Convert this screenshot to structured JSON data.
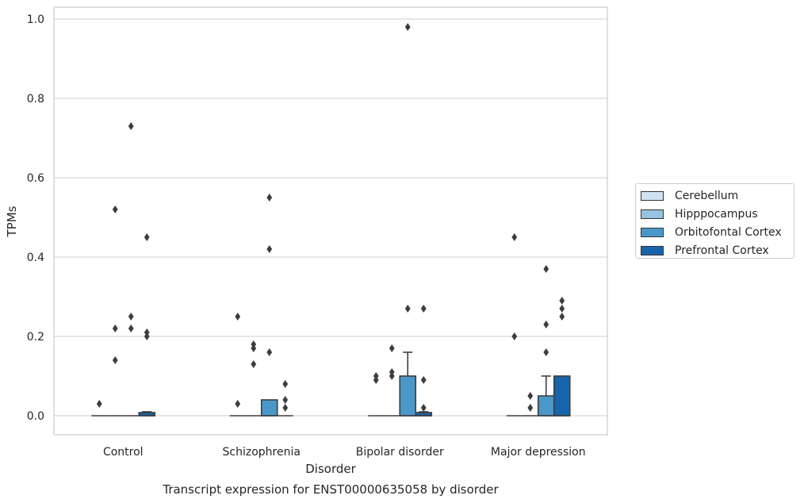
{
  "chart_data": {
    "type": "box",
    "title": "Transcript expression for ENST00000635058 by disorder",
    "xlabel": "Disorder",
    "ylabel": "TPMs",
    "ylim": [
      -0.045,
      1.03
    ],
    "yticks": [
      "0.0",
      "0.2",
      "0.4",
      "0.6",
      "0.8",
      "1.0"
    ],
    "grid": true,
    "legend_position": "right",
    "categories": [
      "Control",
      "Schizophrenia",
      "Bipolar disorder",
      "Major depression"
    ],
    "series": [
      {
        "name": "Cerebellum",
        "color": "#d0e1f2",
        "boxes": [
          {
            "q1": 0,
            "median": 0,
            "q3": 0,
            "whisker_low": 0,
            "whisker_high": 0,
            "outliers": [
              0.03
            ]
          },
          {
            "q1": 0,
            "median": 0,
            "q3": 0,
            "whisker_low": 0,
            "whisker_high": 0,
            "outliers": [
              0.03,
              0.25
            ]
          },
          {
            "q1": 0,
            "median": 0,
            "q3": 0,
            "whisker_low": 0,
            "whisker_high": 0,
            "outliers": [
              0.09,
              0.1
            ]
          },
          {
            "q1": 0,
            "median": 0,
            "q3": 0,
            "whisker_low": 0,
            "whisker_high": 0,
            "outliers": [
              0.2,
              0.45
            ]
          }
        ]
      },
      {
        "name": "Hipppocampus",
        "color": "#94c4df",
        "boxes": [
          {
            "q1": 0,
            "median": 0,
            "q3": 0,
            "whisker_low": 0,
            "whisker_high": 0,
            "outliers": [
              0.14,
              0.22,
              0.52
            ]
          },
          {
            "q1": 0,
            "median": 0,
            "q3": 0,
            "whisker_low": 0,
            "whisker_high": 0,
            "outliers": [
              0.13,
              0.17,
              0.18
            ]
          },
          {
            "q1": 0,
            "median": 0,
            "q3": 0,
            "whisker_low": 0,
            "whisker_high": 0,
            "outliers": [
              0.1,
              0.11,
              0.17
            ]
          },
          {
            "q1": 0,
            "median": 0,
            "q3": 0,
            "whisker_low": 0,
            "whisker_high": 0,
            "outliers": [
              0.02,
              0.05
            ]
          }
        ]
      },
      {
        "name": "Orbitofontal Cortex",
        "color": "#4a98c9",
        "boxes": [
          {
            "q1": 0,
            "median": 0,
            "q3": 0,
            "whisker_low": 0,
            "whisker_high": 0,
            "outliers": [
              0.22,
              0.25,
              0.73
            ]
          },
          {
            "q1": 0,
            "median": 0,
            "q3": 0.04,
            "whisker_low": 0,
            "whisker_high": 0.04,
            "outliers": [
              0.16,
              0.42,
              0.55
            ]
          },
          {
            "q1": 0,
            "median": 0,
            "q3": 0.1,
            "whisker_low": 0,
            "whisker_high": 0.16,
            "outliers": [
              0.27,
              0.98
            ]
          },
          {
            "q1": 0,
            "median": 0,
            "q3": 0.05,
            "whisker_low": 0,
            "whisker_high": 0.1,
            "outliers": [
              0.16,
              0.23,
              0.37
            ]
          }
        ]
      },
      {
        "name": "Prefrontal Cortex",
        "color": "#1764ab",
        "boxes": [
          {
            "q1": 0,
            "median": 0,
            "q3": 0.008,
            "whisker_low": 0,
            "whisker_high": 0.01,
            "outliers": [
              0.2,
              0.21,
              0.45
            ]
          },
          {
            "q1": 0,
            "median": 0,
            "q3": 0,
            "whisker_low": 0,
            "whisker_high": 0,
            "outliers": [
              0.02,
              0.04,
              0.08
            ]
          },
          {
            "q1": 0,
            "median": 0,
            "q3": 0.008,
            "whisker_low": 0,
            "whisker_high": 0.01,
            "outliers": [
              0.02,
              0.09,
              0.27
            ]
          },
          {
            "q1": 0,
            "median": 0,
            "q3": 0.1,
            "whisker_low": 0,
            "whisker_high": 0.1,
            "outliers": [
              0.25,
              0.27,
              0.29
            ]
          }
        ]
      }
    ]
  }
}
